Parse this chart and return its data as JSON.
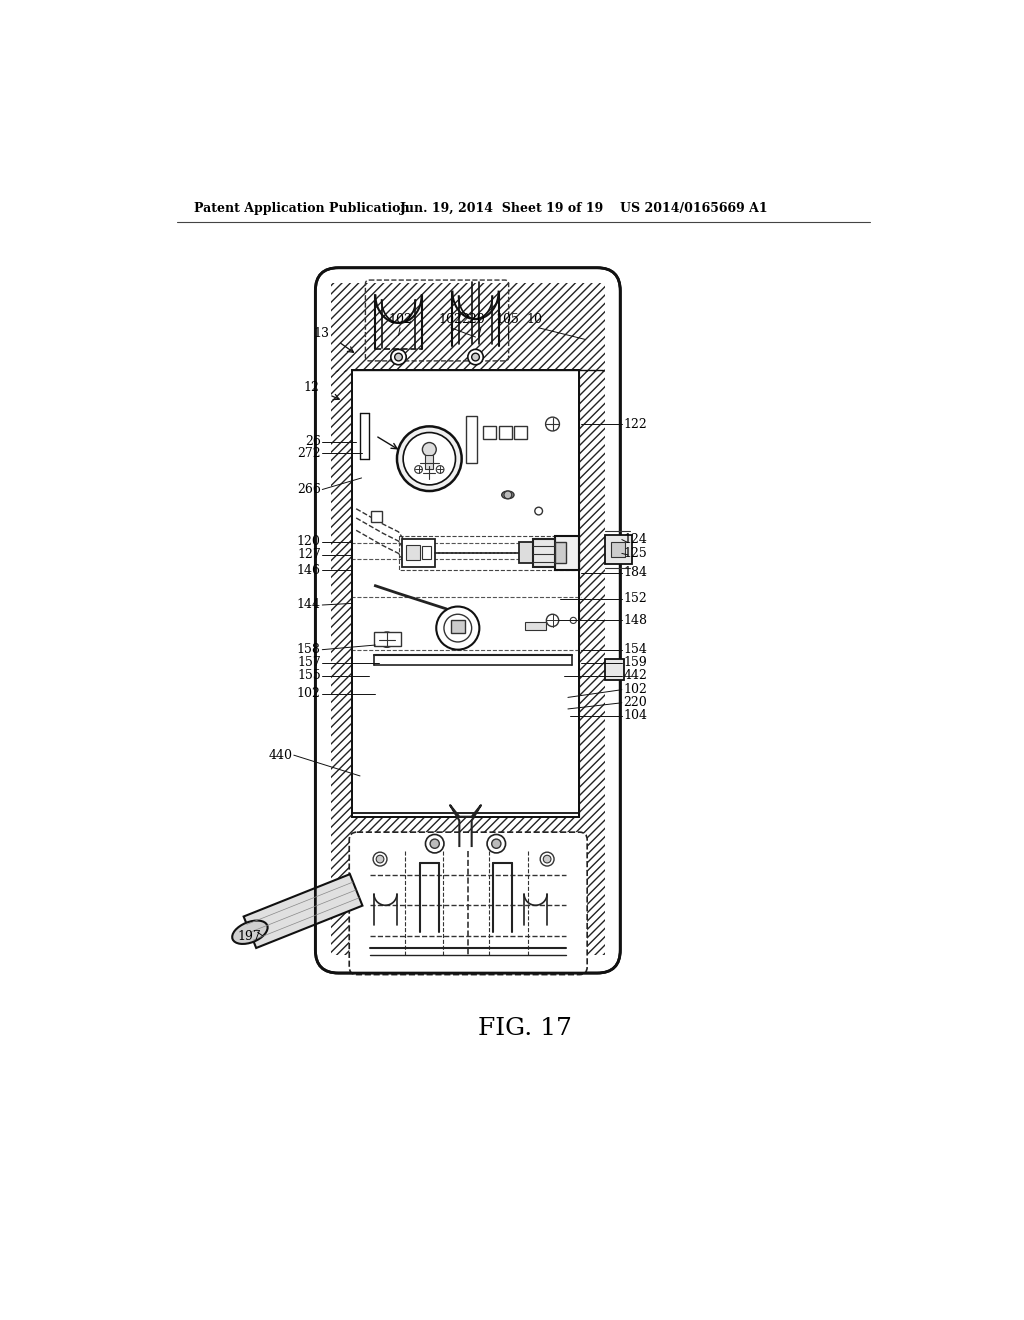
{
  "bg_color": "#ffffff",
  "header_left": "Patent Application Publication",
  "header_mid": "Jun. 19, 2014  Sheet 19 of 19",
  "header_right": "US 2014/0165669 A1",
  "fig_label": "FIG. 17"
}
